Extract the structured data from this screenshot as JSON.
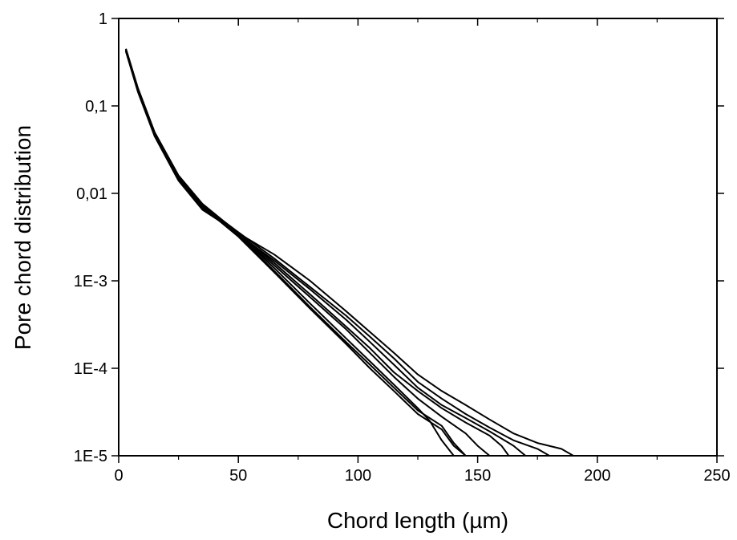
{
  "chart_data": {
    "type": "line",
    "title": "",
    "xlabel": "Chord length (µm)",
    "ylabel": "Pore chord distribution",
    "xlim": [
      0,
      250
    ],
    "ylim": [
      1e-05,
      1
    ],
    "yscale": "log",
    "grid": false,
    "legend": "none",
    "line_color": "#000000",
    "x_ticks": [
      {
        "value": 0,
        "label": "0"
      },
      {
        "value": 50,
        "label": "50"
      },
      {
        "value": 100,
        "label": "100"
      },
      {
        "value": 150,
        "label": "150"
      },
      {
        "value": 200,
        "label": "200"
      },
      {
        "value": 250,
        "label": "250"
      }
    ],
    "y_ticks": [
      {
        "value": 1,
        "label": "1"
      },
      {
        "value": 0.1,
        "label": "0,1"
      },
      {
        "value": 0.01,
        "label": "0,01"
      },
      {
        "value": 0.001,
        "label": "1E-3"
      },
      {
        "value": 0.0001,
        "label": "1E-4"
      },
      {
        "value": 1e-05,
        "label": "1E-5"
      }
    ],
    "series": [
      {
        "x": [
          3,
          8,
          15,
          25,
          35,
          50,
          65,
          80,
          95,
          105,
          115,
          125,
          130,
          135,
          140
        ],
        "y": [
          0.45,
          0.16,
          0.05,
          0.016,
          0.0075,
          0.0034,
          0.0014,
          0.00055,
          0.00022,
          0.00012,
          6.5e-05,
          3.5e-05,
          2.5e-05,
          1.5e-05,
          1e-05
        ]
      },
      {
        "x": [
          3,
          8,
          15,
          25,
          35,
          50,
          65,
          80,
          95,
          105,
          115,
          125,
          135,
          140,
          145
        ],
        "y": [
          0.43,
          0.15,
          0.048,
          0.0155,
          0.0072,
          0.0033,
          0.0013,
          0.0005,
          0.0002,
          0.00011,
          6e-05,
          3.3e-05,
          2.2e-05,
          1.4e-05,
          1e-05
        ]
      },
      {
        "x": [
          3,
          8,
          15,
          25,
          35,
          50,
          65,
          80,
          95,
          105,
          115,
          125,
          135,
          140,
          145
        ],
        "y": [
          0.44,
          0.155,
          0.049,
          0.015,
          0.007,
          0.0032,
          0.00125,
          0.00048,
          0.00019,
          0.0001,
          5.5e-05,
          3e-05,
          2e-05,
          1.3e-05,
          1e-05
        ]
      },
      {
        "x": [
          3,
          8,
          15,
          25,
          35,
          50,
          65,
          80,
          95,
          105,
          115,
          125,
          135,
          145,
          150,
          155
        ],
        "y": [
          0.42,
          0.15,
          0.047,
          0.015,
          0.007,
          0.0034,
          0.0015,
          0.00065,
          0.00028,
          0.00015,
          8e-05,
          4.5e-05,
          2.8e-05,
          1.8e-05,
          1.3e-05,
          1e-05
        ]
      },
      {
        "x": [
          3,
          8,
          15,
          25,
          35,
          50,
          65,
          80,
          95,
          105,
          115,
          125,
          135,
          145,
          155,
          160,
          163
        ],
        "y": [
          0.44,
          0.16,
          0.05,
          0.016,
          0.0076,
          0.0035,
          0.0016,
          0.0007,
          0.0003,
          0.00017,
          9e-05,
          5.5e-05,
          3.5e-05,
          2.4e-05,
          1.7e-05,
          1.3e-05,
          1e-05
        ]
      },
      {
        "x": [
          3,
          8,
          15,
          25,
          35,
          50,
          65,
          80,
          95,
          105,
          115,
          125,
          135,
          145,
          155,
          165,
          170
        ],
        "y": [
          0.43,
          0.15,
          0.046,
          0.0145,
          0.0068,
          0.0034,
          0.0017,
          0.0008,
          0.00036,
          0.0002,
          0.00011,
          6e-05,
          3.8e-05,
          2.7e-05,
          1.9e-05,
          1.3e-05,
          1e-05
        ]
      },
      {
        "x": [
          3,
          8,
          15,
          25,
          35,
          50,
          65,
          80,
          95,
          105,
          115,
          125,
          135,
          145,
          155,
          165,
          175,
          180
        ],
        "y": [
          0.45,
          0.16,
          0.049,
          0.0155,
          0.0073,
          0.0036,
          0.0018,
          0.00085,
          0.0004,
          0.00023,
          0.00013,
          7e-05,
          4.5e-05,
          3e-05,
          2.1e-05,
          1.5e-05,
          1.2e-05,
          1e-05
        ]
      },
      {
        "x": [
          3,
          8,
          15,
          25,
          35,
          50,
          65,
          80,
          95,
          105,
          115,
          125,
          135,
          145,
          155,
          165,
          175,
          185,
          190
        ],
        "y": [
          0.42,
          0.145,
          0.045,
          0.014,
          0.0065,
          0.0035,
          0.002,
          0.001,
          0.00045,
          0.00026,
          0.00015,
          8.5e-05,
          5.5e-05,
          3.8e-05,
          2.6e-05,
          1.8e-05,
          1.4e-05,
          1.2e-05,
          1e-05
        ]
      }
    ]
  }
}
